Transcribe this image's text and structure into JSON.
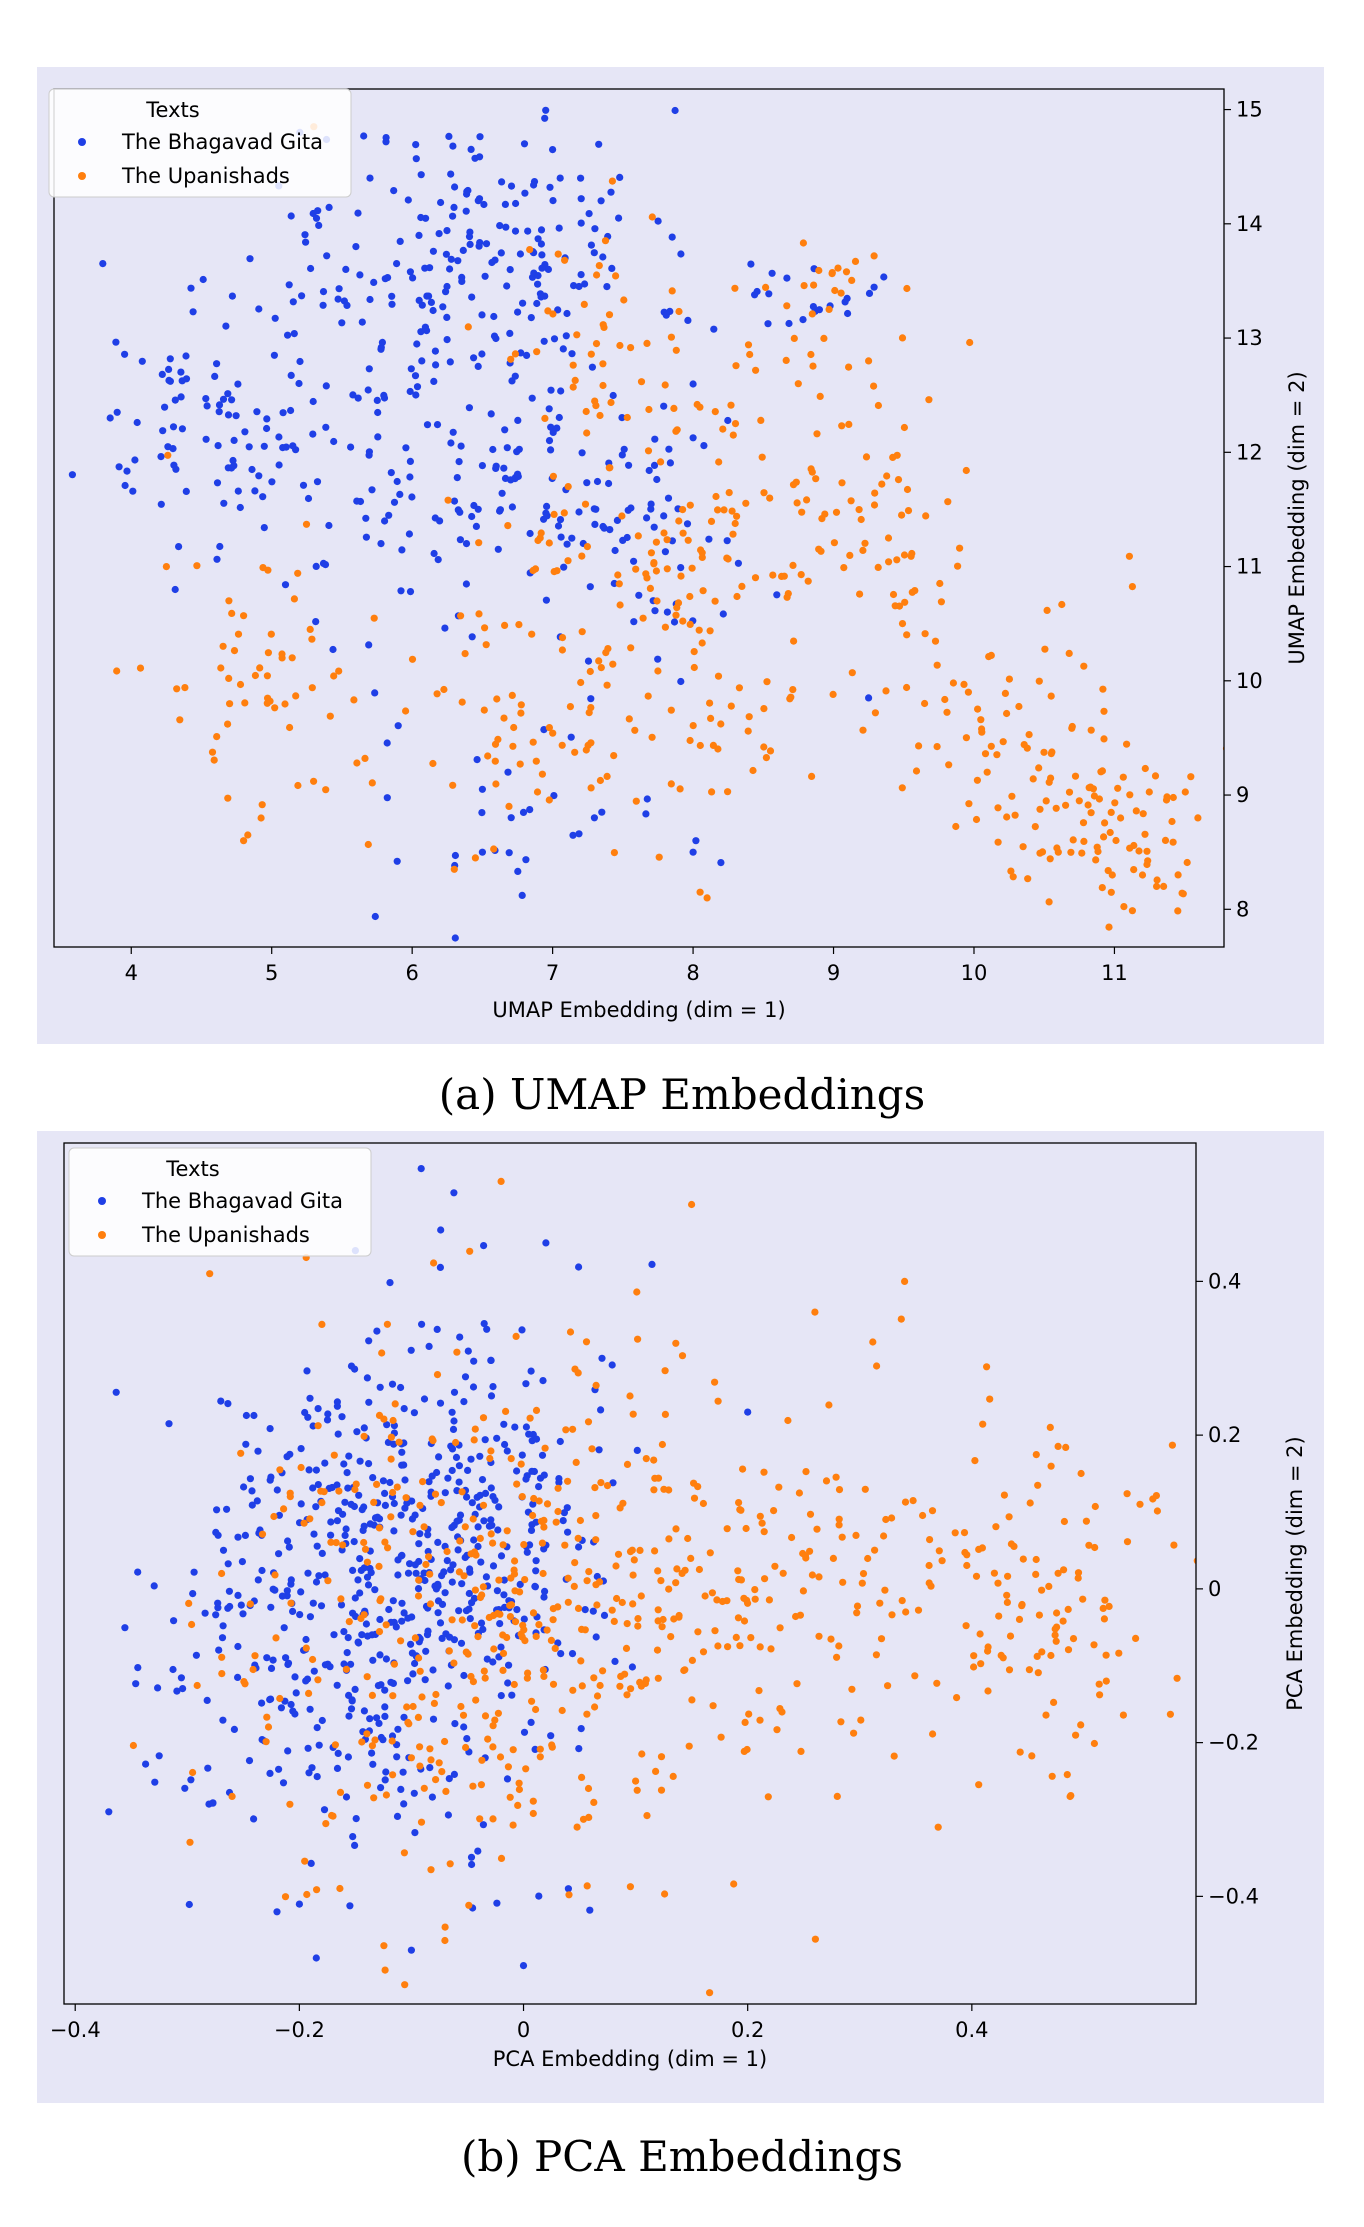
{
  "chart_data": [
    {
      "type": "scatter",
      "xlabel": "UMAP Embedding (dim = 1)",
      "ylabel": "UMAP Embedding (dim = 2)",
      "xlim": [
        3.45,
        11.78
      ],
      "ylim": [
        7.67,
        15.18
      ],
      "xticks": [
        4,
        5,
        6,
        7,
        8,
        9,
        10,
        11
      ],
      "yticks": [
        8,
        9,
        10,
        11,
        12,
        13,
        14,
        15
      ],
      "legend": {
        "title": "Texts",
        "placement": "top-left"
      },
      "series": [
        {
          "name": "The Bhagavad Gita",
          "color": "#1f3fe6",
          "clusters": [
            [
              6.6,
              13.8,
              0.55,
              0.6,
              160
            ],
            [
              6.2,
              12.0,
              0.7,
              0.7,
              150
            ],
            [
              4.6,
              12.2,
              0.45,
              0.5,
              80
            ],
            [
              7.5,
              11.5,
              0.5,
              0.6,
              70
            ],
            [
              8.8,
              13.4,
              0.2,
              0.2,
              20
            ],
            [
              5.3,
              13.5,
              0.4,
              0.4,
              30
            ],
            [
              6.8,
              9.0,
              0.5,
              0.6,
              30
            ]
          ],
          "points": [
            [
              3.85,
              12.3
            ],
            [
              3.9,
              12.35
            ],
            [
              5.2,
              14.8
            ],
            [
              6.8,
              14.7
            ],
            [
              7.0,
              14.65
            ],
            [
              9.25,
              9.85
            ],
            [
              8.0,
              8.5
            ],
            [
              8.02,
              8.6
            ],
            [
              5.7,
              14.4
            ],
            [
              6.5,
              8.5
            ],
            [
              7.35,
              8.85
            ],
            [
              6.5,
              9.05
            ]
          ]
        },
        {
          "name": "The Upanishads",
          "color": "#ff7f0e",
          "clusters": [
            [
              7.7,
              11.0,
              0.6,
              0.7,
              130
            ],
            [
              8.8,
              12.2,
              0.5,
              0.7,
              60
            ],
            [
              10.9,
              8.8,
              0.35,
              0.45,
              90
            ],
            [
              10.2,
              9.6,
              0.5,
              0.6,
              60
            ],
            [
              9.5,
              11.2,
              0.3,
              0.35,
              30
            ],
            [
              4.9,
              10.1,
              0.4,
              0.5,
              50
            ],
            [
              6.8,
              9.3,
              0.7,
              0.4,
              60
            ],
            [
              8.9,
              13.6,
              0.2,
              0.15,
              15
            ],
            [
              7.3,
              13.0,
              0.4,
              0.5,
              40
            ],
            [
              8.4,
              9.5,
              0.4,
              0.3,
              20
            ]
          ],
          "points": [
            [
              4.8,
              8.6
            ],
            [
              4.83,
              8.65
            ],
            [
              8.1,
              8.1
            ],
            [
              8.05,
              8.15
            ],
            [
              11.2,
              8.3
            ],
            [
              11.3,
              8.2
            ],
            [
              11.35,
              8.2
            ],
            [
              10.7,
              9.6
            ],
            [
              10.6,
              8.5
            ],
            [
              4.25,
              11.0
            ],
            [
              4.7,
              9.8
            ],
            [
              9.25,
              12.8
            ],
            [
              5.3,
              14.85
            ],
            [
              6.3,
              8.35
            ],
            [
              6.45,
              8.45
            ]
          ]
        }
      ]
    },
    {
      "type": "scatter",
      "xlabel": "PCA Embedding (dim = 1)",
      "ylabel": "PCA Embedding (dim = 2)",
      "xlim": [
        -0.41,
        0.6
      ],
      "ylim": [
        -0.54,
        0.58
      ],
      "xticks": [
        -0.4,
        -0.2,
        0.0,
        0.2,
        0.4
      ],
      "yticks": [
        -0.4,
        -0.2,
        0.0,
        0.2,
        0.4
      ],
      "legend": {
        "title": "Texts",
        "placement": "top-left"
      },
      "series": [
        {
          "name": "The Bhagavad Gita",
          "color": "#1f3fe6",
          "clusters": [
            [
              -0.13,
              0.0,
              0.08,
              0.16,
              480
            ],
            [
              -0.03,
              0.1,
              0.06,
              0.15,
              120
            ],
            [
              -0.28,
              -0.05,
              0.04,
              0.12,
              40
            ]
          ],
          "points": [
            [
              -0.37,
              -0.29
            ],
            [
              -0.1,
              -0.47
            ],
            [
              0.0,
              -0.49
            ],
            [
              -0.15,
              0.44
            ],
            [
              0.02,
              0.45
            ],
            [
              -0.2,
              -0.41
            ],
            [
              -0.22,
              -0.42
            ],
            [
              0.04,
              -0.39
            ],
            [
              0.07,
              0.3
            ],
            [
              0.2,
              0.23
            ]
          ]
        },
        {
          "name": "The Upanishads",
          "color": "#ff7f0e",
          "clusters": [
            [
              -0.05,
              -0.05,
              0.11,
              0.17,
              360
            ],
            [
              0.1,
              0.03,
              0.06,
              0.13,
              90
            ],
            [
              0.45,
              -0.03,
              0.07,
              0.11,
              130
            ],
            [
              0.29,
              0.05,
              0.05,
              0.13,
              45
            ],
            [
              0.2,
              -0.05,
              0.05,
              0.1,
              40
            ]
          ],
          "points": [
            [
              -0.02,
              0.53
            ],
            [
              0.15,
              0.5
            ],
            [
              0.34,
              0.4
            ],
            [
              0.37,
              -0.31
            ],
            [
              0.26,
              0.36
            ],
            [
              0.52,
              -0.12
            ],
            [
              0.55,
              0.11
            ],
            [
              0.28,
              -0.27
            ],
            [
              0.1,
              -0.25
            ],
            [
              -0.28,
              0.41
            ],
            [
              -0.26,
              -0.27
            ],
            [
              0.47,
              0.21
            ],
            [
              -0.07,
              -0.44
            ]
          ]
        }
      ]
    }
  ],
  "captions": {
    "a": "(a) UMAP Embeddings",
    "b": "(b) PCA Embeddings"
  }
}
